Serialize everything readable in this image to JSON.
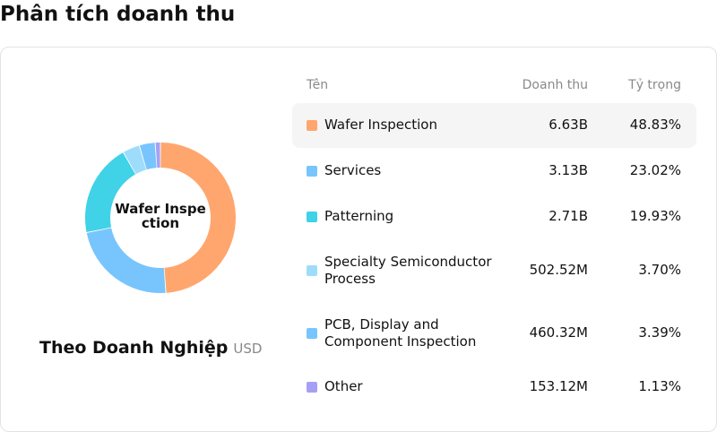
{
  "page": {
    "title": "Phân tích doanh thu"
  },
  "caption": {
    "main": "Theo Doanh Nghiệp",
    "unit": "USD"
  },
  "table": {
    "headers": {
      "name": "Tên",
      "revenue": "Doanh thu",
      "share": "Tỷ trọng"
    },
    "rows": [
      {
        "name": "Wafer Inspection",
        "revenue": "6.63B",
        "share": "48.83%",
        "color": "#FFA66E"
      },
      {
        "name": "Services",
        "revenue": "3.13B",
        "share": "23.02%",
        "color": "#77C5FC"
      },
      {
        "name": "Patterning",
        "revenue": "2.71B",
        "share": "19.93%",
        "color": "#40D2E6"
      },
      {
        "name": "Specialty Semiconductor Process",
        "revenue": "502.52M",
        "share": "3.70%",
        "color": "#9EDCFB"
      },
      {
        "name": "PCB, Display and Component Inspection",
        "revenue": "460.32M",
        "share": "3.39%",
        "color": "#77C5FC"
      },
      {
        "name": "Other",
        "revenue": "153.12M",
        "share": "1.13%",
        "color": "#A6A0F5"
      }
    ]
  },
  "chart_data": {
    "type": "pie",
    "center_label": "Wafer Inspection",
    "categories": [
      "Wafer Inspection",
      "Services",
      "Patterning",
      "Specialty Semiconductor Process",
      "PCB, Display and Component Inspection",
      "Other"
    ],
    "values": [
      48.83,
      23.02,
      19.93,
      3.7,
      3.39,
      1.13
    ],
    "colors": [
      "#FFA66E",
      "#77C5FC",
      "#40D2E6",
      "#9EDCFB",
      "#77C5FC",
      "#A6A0F5"
    ]
  }
}
